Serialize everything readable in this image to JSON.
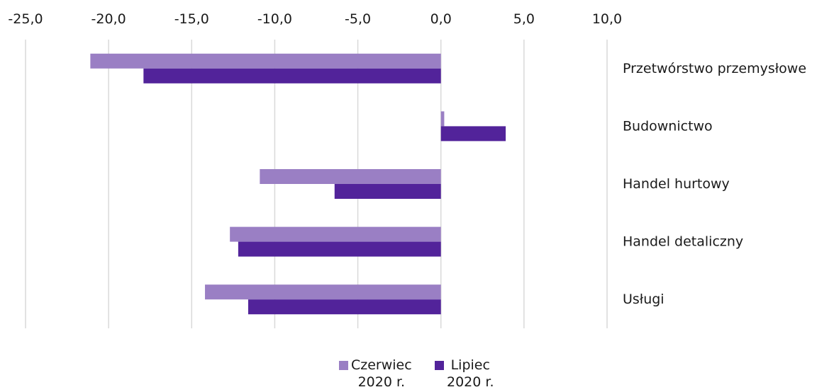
{
  "chart_data": {
    "type": "bar",
    "orientation": "horizontal",
    "categories": [
      "Przetwórstwo przemysłowe",
      "Budownictwo",
      "Handel hurtowy",
      "Handel detaliczny",
      "Usługi"
    ],
    "series": [
      {
        "name": "Czerwiec\n2020 r.",
        "color": "#9a7fc4",
        "values": [
          -21.1,
          0.2,
          -10.9,
          -12.7,
          -14.2
        ]
      },
      {
        "name": "Lipiec\n2020 r.",
        "color": "#52239a",
        "values": [
          -17.9,
          3.9,
          -6.4,
          -12.2,
          -11.6
        ]
      }
    ],
    "xlim": [
      -25,
      10
    ],
    "xticks": [
      -25,
      -20,
      -15,
      -10,
      -5,
      0,
      5,
      10
    ],
    "xtick_labels": [
      "-25,0",
      "-20,0",
      "-15,0",
      "-10,0",
      "-5,0",
      "0,0",
      "5,0",
      "10,0"
    ],
    "grid": true,
    "axis_position": "top",
    "legend_position": "bottom"
  }
}
